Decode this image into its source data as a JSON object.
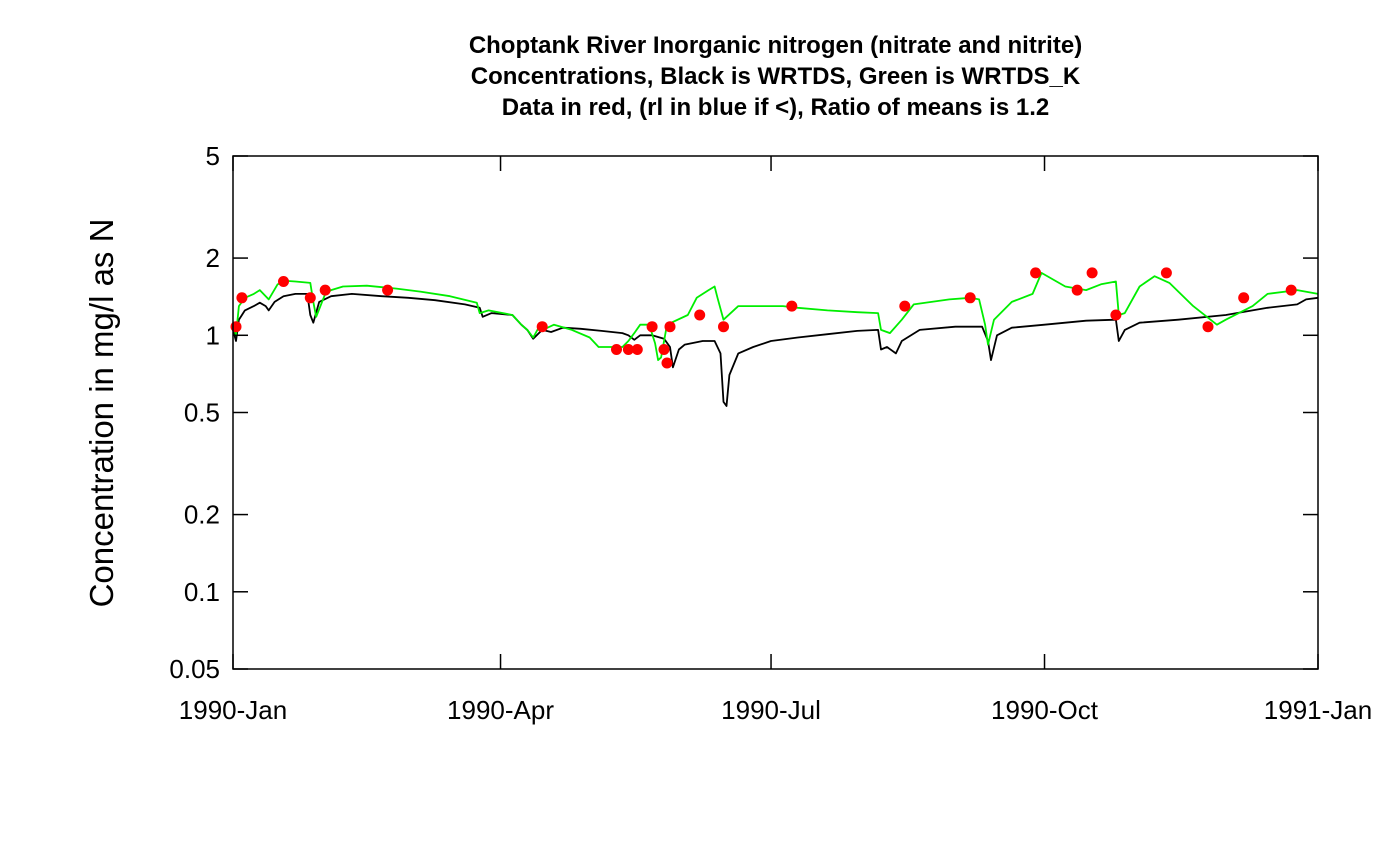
{
  "chart_data": {
    "type": "line",
    "title_lines": [
      "Choptank River Inorganic nitrogen (nitrate and nitrite)",
      "Concentrations, Black is WRTDS, Green is WRTDS_K",
      "Data in red, (rl in blue if <), Ratio of means is 1.2"
    ],
    "xlabel": "",
    "ylabel": "Concentration in mg/l as N",
    "y_scale": "log",
    "ylim": [
      0.05,
      5
    ],
    "y_ticks": [
      {
        "value": 0.05,
        "label": "0.05"
      },
      {
        "value": 0.1,
        "label": "0.1"
      },
      {
        "value": 0.2,
        "label": "0.2"
      },
      {
        "value": 0.5,
        "label": "0.5"
      },
      {
        "value": 1,
        "label": "1"
      },
      {
        "value": 2,
        "label": "2"
      },
      {
        "value": 5,
        "label": "5"
      }
    ],
    "xlim": [
      "1990-01-01",
      "1991-01-01"
    ],
    "x_ticks": [
      {
        "value": "1990-01-01",
        "label": "1990-Jan"
      },
      {
        "value": "1990-04-01",
        "label": "1990-Apr"
      },
      {
        "value": "1990-07-01",
        "label": "1990-Jul"
      },
      {
        "value": "1990-10-01",
        "label": "1990-Oct"
      },
      {
        "value": "1991-01-01",
        "label": "1991-Jan"
      }
    ],
    "grid": false,
    "colors": {
      "wrtds": "#000000",
      "wrtds_k": "#00ee00",
      "data": "#ff0000",
      "axis": "#000000"
    },
    "series": [
      {
        "key": "wrtds",
        "points": [
          [
            "1990-01-01",
            1.05
          ],
          [
            "1990-01-02",
            0.95
          ],
          [
            "1990-01-03",
            1.15
          ],
          [
            "1990-01-05",
            1.25
          ],
          [
            "1990-01-08",
            1.3
          ],
          [
            "1990-01-10",
            1.34
          ],
          [
            "1990-01-12",
            1.3
          ],
          [
            "1990-01-13",
            1.25
          ],
          [
            "1990-01-15",
            1.35
          ],
          [
            "1990-01-18",
            1.42
          ],
          [
            "1990-01-22",
            1.45
          ],
          [
            "1990-01-26",
            1.45
          ],
          [
            "1990-01-26",
            1.45
          ],
          [
            "1990-01-27",
            1.2
          ],
          [
            "1990-01-28",
            1.12
          ],
          [
            "1990-01-30",
            1.35
          ],
          [
            "1990-02-03",
            1.42
          ],
          [
            "1990-02-10",
            1.45
          ],
          [
            "1990-02-20",
            1.42
          ],
          [
            "1990-03-01",
            1.4
          ],
          [
            "1990-03-10",
            1.37
          ],
          [
            "1990-03-20",
            1.32
          ],
          [
            "1990-03-25",
            1.28
          ],
          [
            "1990-03-26",
            1.18
          ],
          [
            "1990-03-29",
            1.22
          ],
          [
            "1990-04-05",
            1.2
          ],
          [
            "1990-04-08",
            1.1
          ],
          [
            "1990-04-10",
            1.05
          ],
          [
            "1990-04-12",
            0.97
          ],
          [
            "1990-04-15",
            1.05
          ],
          [
            "1990-04-18",
            1.03
          ],
          [
            "1990-04-22",
            1.07
          ],
          [
            "1990-04-28",
            1.06
          ],
          [
            "1990-05-05",
            1.04
          ],
          [
            "1990-05-12",
            1.02
          ],
          [
            "1990-05-14",
            1.0
          ],
          [
            "1990-05-16",
            0.96
          ],
          [
            "1990-05-18",
            1.0
          ],
          [
            "1990-05-22",
            1.0
          ],
          [
            "1990-05-26",
            0.97
          ],
          [
            "1990-05-28",
            0.9
          ],
          [
            "1990-05-29",
            0.75
          ],
          [
            "1990-05-31",
            0.88
          ],
          [
            "1990-06-02",
            0.92
          ],
          [
            "1990-06-08",
            0.95
          ],
          [
            "1990-06-12",
            0.95
          ],
          [
            "1990-06-14",
            0.85
          ],
          [
            "1990-06-15",
            0.55
          ],
          [
            "1990-06-16",
            0.53
          ],
          [
            "1990-06-17",
            0.7
          ],
          [
            "1990-06-20",
            0.85
          ],
          [
            "1990-06-25",
            0.9
          ],
          [
            "1990-07-01",
            0.95
          ],
          [
            "1990-07-10",
            0.98
          ],
          [
            "1990-07-20",
            1.01
          ],
          [
            "1990-07-30",
            1.04
          ],
          [
            "1990-08-06",
            1.05
          ],
          [
            "1990-08-07",
            0.88
          ],
          [
            "1990-08-09",
            0.9
          ],
          [
            "1990-08-12",
            0.85
          ],
          [
            "1990-08-14",
            0.95
          ],
          [
            "1990-08-20",
            1.05
          ],
          [
            "1990-09-01",
            1.08
          ],
          [
            "1990-09-10",
            1.08
          ],
          [
            "1990-09-12",
            0.95
          ],
          [
            "1990-09-13",
            0.8
          ],
          [
            "1990-09-15",
            1.0
          ],
          [
            "1990-09-20",
            1.07
          ],
          [
            "1990-10-01",
            1.1
          ],
          [
            "1990-10-15",
            1.14
          ],
          [
            "1990-10-25",
            1.15
          ],
          [
            "1990-10-26",
            0.95
          ],
          [
            "1990-10-28",
            1.05
          ],
          [
            "1990-11-02",
            1.12
          ],
          [
            "1990-11-15",
            1.15
          ],
          [
            "1990-12-01",
            1.2
          ],
          [
            "1990-12-15",
            1.28
          ],
          [
            "1990-12-25",
            1.32
          ],
          [
            "1990-12-28",
            1.38
          ],
          [
            "1991-01-01",
            1.4
          ]
        ]
      },
      {
        "key": "wrtds_k",
        "points": [
          [
            "1990-01-01",
            1.1
          ],
          [
            "1990-01-02",
            1.0
          ],
          [
            "1990-01-03",
            1.3
          ],
          [
            "1990-01-05",
            1.4
          ],
          [
            "1990-01-08",
            1.45
          ],
          [
            "1990-01-10",
            1.5
          ],
          [
            "1990-01-12",
            1.42
          ],
          [
            "1990-01-13",
            1.38
          ],
          [
            "1990-01-16",
            1.58
          ],
          [
            "1990-01-19",
            1.63
          ],
          [
            "1990-01-22",
            1.62
          ],
          [
            "1990-01-27",
            1.6
          ],
          [
            "1990-01-28",
            1.35
          ],
          [
            "1990-01-29",
            1.18
          ],
          [
            "1990-02-01",
            1.45
          ],
          [
            "1990-02-03",
            1.5
          ],
          [
            "1990-02-07",
            1.55
          ],
          [
            "1990-02-15",
            1.56
          ],
          [
            "1990-02-25",
            1.52
          ],
          [
            "1990-03-05",
            1.48
          ],
          [
            "1990-03-15",
            1.42
          ],
          [
            "1990-03-24",
            1.34
          ],
          [
            "1990-03-25",
            1.22
          ],
          [
            "1990-03-28",
            1.25
          ],
          [
            "1990-04-05",
            1.2
          ],
          [
            "1990-04-08",
            1.1
          ],
          [
            "1990-04-10",
            1.05
          ],
          [
            "1990-04-12",
            0.98
          ],
          [
            "1990-04-14",
            1.08
          ],
          [
            "1990-04-16",
            1.06
          ],
          [
            "1990-04-19",
            1.1
          ],
          [
            "1990-04-25",
            1.05
          ],
          [
            "1990-05-01",
            0.98
          ],
          [
            "1990-05-04",
            0.9
          ],
          [
            "1990-05-09",
            0.9
          ],
          [
            "1990-05-12",
            0.9
          ],
          [
            "1990-05-14",
            0.95
          ],
          [
            "1990-05-16",
            1.02
          ],
          [
            "1990-05-18",
            1.1
          ],
          [
            "1990-05-21",
            1.1
          ],
          [
            "1990-05-23",
            0.93
          ],
          [
            "1990-05-24",
            0.8
          ],
          [
            "1990-05-25",
            0.82
          ],
          [
            "1990-05-27",
            1.1
          ],
          [
            "1990-06-03",
            1.2
          ],
          [
            "1990-06-06",
            1.4
          ],
          [
            "1990-06-10",
            1.5
          ],
          [
            "1990-06-12",
            1.55
          ],
          [
            "1990-06-13",
            1.4
          ],
          [
            "1990-06-15",
            1.15
          ],
          [
            "1990-06-20",
            1.3
          ],
          [
            "1990-07-05",
            1.3
          ],
          [
            "1990-07-10",
            1.28
          ],
          [
            "1990-07-20",
            1.25
          ],
          [
            "1990-07-30",
            1.23
          ],
          [
            "1990-08-06",
            1.22
          ],
          [
            "1990-08-07",
            1.05
          ],
          [
            "1990-08-10",
            1.02
          ],
          [
            "1990-08-14",
            1.15
          ],
          [
            "1990-08-18",
            1.32
          ],
          [
            "1990-08-30",
            1.38
          ],
          [
            "1990-09-06",
            1.4
          ],
          [
            "1990-09-09",
            1.38
          ],
          [
            "1990-09-11",
            1.1
          ],
          [
            "1990-09-12",
            0.92
          ],
          [
            "1990-09-14",
            1.15
          ],
          [
            "1990-09-20",
            1.35
          ],
          [
            "1990-09-27",
            1.45
          ],
          [
            "1990-09-30",
            1.75
          ],
          [
            "1990-10-08",
            1.55
          ],
          [
            "1990-10-15",
            1.5
          ],
          [
            "1990-10-20",
            1.58
          ],
          [
            "1990-10-25",
            1.62
          ],
          [
            "1990-10-26",
            1.2
          ],
          [
            "1990-10-28",
            1.22
          ],
          [
            "1990-11-02",
            1.55
          ],
          [
            "1990-11-07",
            1.7
          ],
          [
            "1990-11-12",
            1.6
          ],
          [
            "1990-11-20",
            1.3
          ],
          [
            "1990-11-28",
            1.1
          ],
          [
            "1990-12-01",
            1.15
          ],
          [
            "1990-12-10",
            1.3
          ],
          [
            "1990-12-15",
            1.45
          ],
          [
            "1990-12-25",
            1.5
          ],
          [
            "1991-01-01",
            1.45
          ]
        ]
      },
      {
        "key": "data",
        "points": [
          [
            "1990-01-02",
            1.08
          ],
          [
            "1990-01-04",
            1.4
          ],
          [
            "1990-01-18",
            1.62
          ],
          [
            "1990-01-27",
            1.4
          ],
          [
            "1990-02-01",
            1.5
          ],
          [
            "1990-02-22",
            1.5
          ],
          [
            "1990-04-15",
            1.08
          ],
          [
            "1990-05-10",
            0.88
          ],
          [
            "1990-05-14",
            0.88
          ],
          [
            "1990-05-17",
            0.88
          ],
          [
            "1990-05-22",
            1.08
          ],
          [
            "1990-05-26",
            0.88
          ],
          [
            "1990-05-27",
            0.78
          ],
          [
            "1990-05-28",
            1.08
          ],
          [
            "1990-06-07",
            1.2
          ],
          [
            "1990-06-15",
            1.08
          ],
          [
            "1990-07-08",
            1.3
          ],
          [
            "1990-08-15",
            1.3
          ],
          [
            "1990-09-06",
            1.4
          ],
          [
            "1990-09-28",
            1.75
          ],
          [
            "1990-10-12",
            1.5
          ],
          [
            "1990-10-17",
            1.75
          ],
          [
            "1990-10-25",
            1.2
          ],
          [
            "1990-11-11",
            1.75
          ],
          [
            "1990-11-25",
            1.08
          ],
          [
            "1990-12-07",
            1.4
          ],
          [
            "1990-12-23",
            1.5
          ]
        ]
      }
    ]
  }
}
